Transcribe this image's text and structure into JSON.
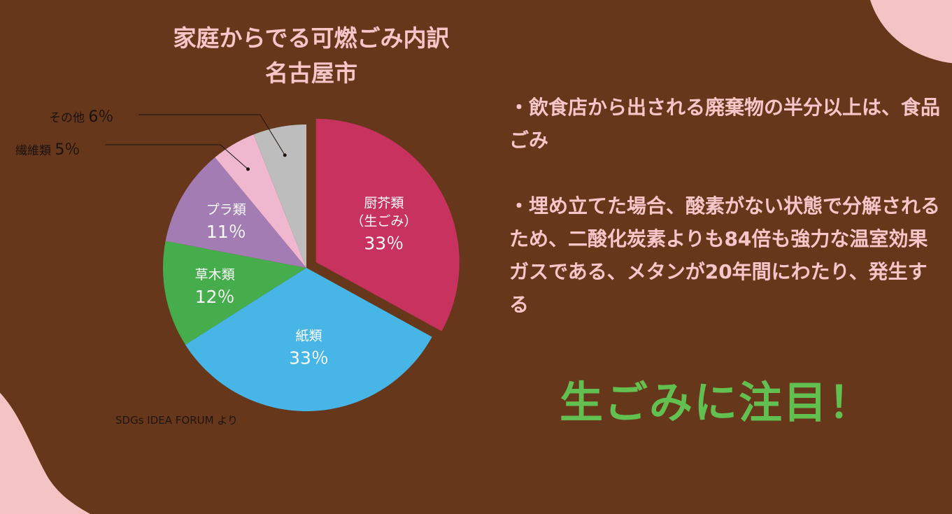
{
  "chart_data": {
    "type": "pie",
    "title_lines": [
      "家庭からでる可燃ごみ内訳",
      "名古屋市"
    ],
    "slices": [
      {
        "name_lines": [
          "厨芥類",
          "（生ごみ）"
        ],
        "value": 33,
        "value_label": "33％",
        "color": "#c8325f",
        "label_mode": "inside",
        "exploded": true
      },
      {
        "name_lines": [
          "紙類"
        ],
        "value": 33,
        "value_label": "33％",
        "color": "#47b6e6",
        "label_mode": "inside",
        "exploded": false
      },
      {
        "name_lines": [
          "草木類"
        ],
        "value": 12,
        "value_label": "12％",
        "color": "#46ad4c",
        "label_mode": "inside",
        "exploded": false
      },
      {
        "name_lines": [
          "プラ類"
        ],
        "value": 11,
        "value_label": "11％",
        "color": "#a47cb4",
        "label_mode": "inside",
        "exploded": false
      },
      {
        "name_lines": [
          "繊維類"
        ],
        "value": 5,
        "value_label": "5％",
        "color": "#efb8cf",
        "label_mode": "outside",
        "exploded": false
      },
      {
        "name_lines": [
          "その他"
        ],
        "value": 6,
        "value_label": "6％",
        "color": "#bdbdbd",
        "label_mode": "outside",
        "exploded": false
      }
    ],
    "source": "SDGs IDEA FORUM より"
  },
  "bullets": [
    "・飲食店から出される廃棄物の半分以上は、食品ごみ",
    "・埋め立てた場合、酸素がない状態で分解されるため、二酸化炭素よりも84倍も強力な温室効果ガスである、メタンが20年間にわたり、発生する"
  ],
  "highlight": "生ごみに注目！",
  "colors": {
    "background": "#67371c",
    "title_text": "#f6c6c9",
    "highlight": "#62c051",
    "blob": "#f4c3c4"
  }
}
